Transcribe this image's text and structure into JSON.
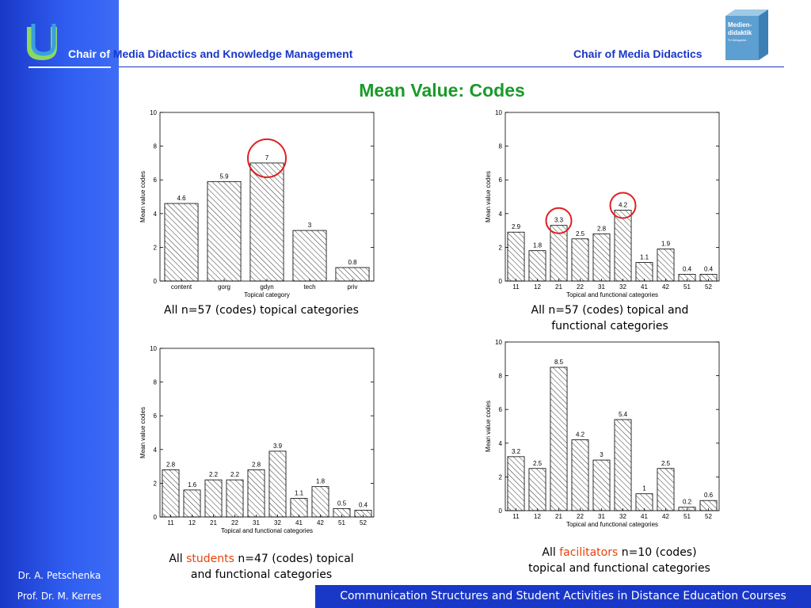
{
  "header": {
    "left_prefix": "Chair of ",
    "left_rest": "Media Didactics and Knowledge Management",
    "right": "Chair of Media Didactics",
    "logo_text_line1": "Medien-",
    "logo_text_line2": "didaktik",
    "logo_text_line3": "TU Weingarten"
  },
  "title": "Mean Value: Codes",
  "sidebar": {
    "author1": "Dr. A. Petschenka",
    "author2": "Prof. Dr. M. Kerres"
  },
  "footer": {
    "text": "Communication Structures and Student Activities in Distance Education Courses"
  },
  "colors": {
    "title": "#1a9a2a",
    "header": "#1836c8",
    "sidebar": "#2f5df0",
    "highlight_circle": "#e02020",
    "caption_highlight": "#e8420a"
  },
  "chart_data": [
    {
      "type": "bar",
      "categories": [
        "content",
        "gorg",
        "gdyn",
        "tech",
        "priv"
      ],
      "values": [
        4.6,
        5.9,
        7,
        3,
        0.8
      ],
      "value_labels": [
        "4.6",
        "5.9",
        "7",
        "3",
        "0.8"
      ],
      "xlabel": "Topical category",
      "ylabel": "Mean value codes",
      "ylim": [
        0,
        10
      ],
      "yticks": [
        0,
        2,
        4,
        6,
        8,
        10
      ],
      "highlighted": [
        "gdyn"
      ],
      "caption": {
        "parts": [
          "All n=57 (codes) topical categories"
        ]
      }
    },
    {
      "type": "bar",
      "categories": [
        "11",
        "12",
        "21",
        "22",
        "31",
        "32",
        "41",
        "42",
        "51",
        "52"
      ],
      "values": [
        2.9,
        1.8,
        3.3,
        2.5,
        2.8,
        4.2,
        1.1,
        1.9,
        0.4,
        0.4
      ],
      "value_labels": [
        "2.9",
        "1.8",
        "3.3",
        "2.5",
        "2.8",
        "4.2",
        "1.1",
        "1.9",
        "0.4",
        "0.4"
      ],
      "xlabel": "Topical and functional categories",
      "ylabel": "Mean value codes",
      "ylim": [
        0,
        10
      ],
      "yticks": [
        0,
        2,
        4,
        6,
        8,
        10
      ],
      "highlighted": [
        "21",
        "32"
      ],
      "caption": {
        "parts": [
          "All n=57 (codes) topical and",
          "functional categories"
        ]
      }
    },
    {
      "type": "bar",
      "categories": [
        "11",
        "12",
        "21",
        "22",
        "31",
        "32",
        "41",
        "42",
        "51",
        "52"
      ],
      "values": [
        2.8,
        1.6,
        2.2,
        2.2,
        2.8,
        3.9,
        1.1,
        1.8,
        0.5,
        0.4
      ],
      "value_labels": [
        "2.8",
        "1.6",
        "2.2",
        "2.2",
        "2.8",
        "3.9",
        "1.1",
        "1.8",
        "0.5",
        "0.4"
      ],
      "xlabel": "Topical and functional categories",
      "ylabel": "Mean value codes",
      "ylim": [
        0,
        10
      ],
      "yticks": [
        0,
        2,
        4,
        6,
        8,
        10
      ],
      "highlighted": [],
      "caption": {
        "pre": "All ",
        "hl": "students",
        "post": " n=47 (codes) topical",
        "line2": "and functional categories"
      }
    },
    {
      "type": "bar",
      "categories": [
        "11",
        "12",
        "21",
        "22",
        "31",
        "32",
        "41",
        "42",
        "51",
        "52"
      ],
      "values": [
        3.2,
        2.5,
        8.5,
        4.2,
        3,
        5.4,
        1,
        2.5,
        0.2,
        0.6
      ],
      "value_labels": [
        "3.2",
        "2.5",
        "8.5",
        "4.2",
        "3",
        "5.4",
        "1",
        "2.5",
        "0.2",
        "0.6"
      ],
      "xlabel": "Topical and functional categories",
      "ylabel": "Mean value codes",
      "ylim": [
        0,
        10
      ],
      "yticks": [
        0,
        2,
        4,
        6,
        8,
        10
      ],
      "highlighted": [],
      "caption": {
        "pre": "All ",
        "hl": "facilitators",
        "post": " n=10 (codes)",
        "line2": "topical and functional categories"
      }
    }
  ]
}
